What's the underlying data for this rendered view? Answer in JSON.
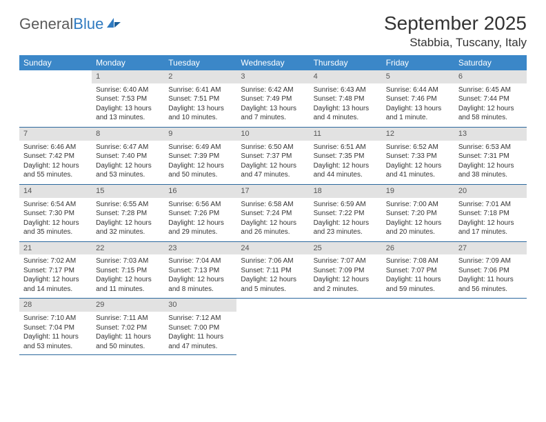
{
  "logo": {
    "text1": "General",
    "text2": "Blue"
  },
  "title": "September 2025",
  "location": "Stabbia, Tuscany, Italy",
  "colors": {
    "header_bg": "#3b87c8",
    "header_text": "#ffffff",
    "daynum_bg": "#e2e2e2",
    "row_border": "#2a679d",
    "body_text": "#333333",
    "logo_gray": "#5a5a5a",
    "logo_blue": "#2f7ac0"
  },
  "day_headers": [
    "Sunday",
    "Monday",
    "Tuesday",
    "Wednesday",
    "Thursday",
    "Friday",
    "Saturday"
  ],
  "weeks": [
    [
      {
        "n": "",
        "sr": "",
        "ss": "",
        "d1": "",
        "d2": ""
      },
      {
        "n": "1",
        "sr": "Sunrise: 6:40 AM",
        "ss": "Sunset: 7:53 PM",
        "d1": "Daylight: 13 hours",
        "d2": "and 13 minutes."
      },
      {
        "n": "2",
        "sr": "Sunrise: 6:41 AM",
        "ss": "Sunset: 7:51 PM",
        "d1": "Daylight: 13 hours",
        "d2": "and 10 minutes."
      },
      {
        "n": "3",
        "sr": "Sunrise: 6:42 AM",
        "ss": "Sunset: 7:49 PM",
        "d1": "Daylight: 13 hours",
        "d2": "and 7 minutes."
      },
      {
        "n": "4",
        "sr": "Sunrise: 6:43 AM",
        "ss": "Sunset: 7:48 PM",
        "d1": "Daylight: 13 hours",
        "d2": "and 4 minutes."
      },
      {
        "n": "5",
        "sr": "Sunrise: 6:44 AM",
        "ss": "Sunset: 7:46 PM",
        "d1": "Daylight: 13 hours",
        "d2": "and 1 minute."
      },
      {
        "n": "6",
        "sr": "Sunrise: 6:45 AM",
        "ss": "Sunset: 7:44 PM",
        "d1": "Daylight: 12 hours",
        "d2": "and 58 minutes."
      }
    ],
    [
      {
        "n": "7",
        "sr": "Sunrise: 6:46 AM",
        "ss": "Sunset: 7:42 PM",
        "d1": "Daylight: 12 hours",
        "d2": "and 55 minutes."
      },
      {
        "n": "8",
        "sr": "Sunrise: 6:47 AM",
        "ss": "Sunset: 7:40 PM",
        "d1": "Daylight: 12 hours",
        "d2": "and 53 minutes."
      },
      {
        "n": "9",
        "sr": "Sunrise: 6:49 AM",
        "ss": "Sunset: 7:39 PM",
        "d1": "Daylight: 12 hours",
        "d2": "and 50 minutes."
      },
      {
        "n": "10",
        "sr": "Sunrise: 6:50 AM",
        "ss": "Sunset: 7:37 PM",
        "d1": "Daylight: 12 hours",
        "d2": "and 47 minutes."
      },
      {
        "n": "11",
        "sr": "Sunrise: 6:51 AM",
        "ss": "Sunset: 7:35 PM",
        "d1": "Daylight: 12 hours",
        "d2": "and 44 minutes."
      },
      {
        "n": "12",
        "sr": "Sunrise: 6:52 AM",
        "ss": "Sunset: 7:33 PM",
        "d1": "Daylight: 12 hours",
        "d2": "and 41 minutes."
      },
      {
        "n": "13",
        "sr": "Sunrise: 6:53 AM",
        "ss": "Sunset: 7:31 PM",
        "d1": "Daylight: 12 hours",
        "d2": "and 38 minutes."
      }
    ],
    [
      {
        "n": "14",
        "sr": "Sunrise: 6:54 AM",
        "ss": "Sunset: 7:30 PM",
        "d1": "Daylight: 12 hours",
        "d2": "and 35 minutes."
      },
      {
        "n": "15",
        "sr": "Sunrise: 6:55 AM",
        "ss": "Sunset: 7:28 PM",
        "d1": "Daylight: 12 hours",
        "d2": "and 32 minutes."
      },
      {
        "n": "16",
        "sr": "Sunrise: 6:56 AM",
        "ss": "Sunset: 7:26 PM",
        "d1": "Daylight: 12 hours",
        "d2": "and 29 minutes."
      },
      {
        "n": "17",
        "sr": "Sunrise: 6:58 AM",
        "ss": "Sunset: 7:24 PM",
        "d1": "Daylight: 12 hours",
        "d2": "and 26 minutes."
      },
      {
        "n": "18",
        "sr": "Sunrise: 6:59 AM",
        "ss": "Sunset: 7:22 PM",
        "d1": "Daylight: 12 hours",
        "d2": "and 23 minutes."
      },
      {
        "n": "19",
        "sr": "Sunrise: 7:00 AM",
        "ss": "Sunset: 7:20 PM",
        "d1": "Daylight: 12 hours",
        "d2": "and 20 minutes."
      },
      {
        "n": "20",
        "sr": "Sunrise: 7:01 AM",
        "ss": "Sunset: 7:18 PM",
        "d1": "Daylight: 12 hours",
        "d2": "and 17 minutes."
      }
    ],
    [
      {
        "n": "21",
        "sr": "Sunrise: 7:02 AM",
        "ss": "Sunset: 7:17 PM",
        "d1": "Daylight: 12 hours",
        "d2": "and 14 minutes."
      },
      {
        "n": "22",
        "sr": "Sunrise: 7:03 AM",
        "ss": "Sunset: 7:15 PM",
        "d1": "Daylight: 12 hours",
        "d2": "and 11 minutes."
      },
      {
        "n": "23",
        "sr": "Sunrise: 7:04 AM",
        "ss": "Sunset: 7:13 PM",
        "d1": "Daylight: 12 hours",
        "d2": "and 8 minutes."
      },
      {
        "n": "24",
        "sr": "Sunrise: 7:06 AM",
        "ss": "Sunset: 7:11 PM",
        "d1": "Daylight: 12 hours",
        "d2": "and 5 minutes."
      },
      {
        "n": "25",
        "sr": "Sunrise: 7:07 AM",
        "ss": "Sunset: 7:09 PM",
        "d1": "Daylight: 12 hours",
        "d2": "and 2 minutes."
      },
      {
        "n": "26",
        "sr": "Sunrise: 7:08 AM",
        "ss": "Sunset: 7:07 PM",
        "d1": "Daylight: 11 hours",
        "d2": "and 59 minutes."
      },
      {
        "n": "27",
        "sr": "Sunrise: 7:09 AM",
        "ss": "Sunset: 7:06 PM",
        "d1": "Daylight: 11 hours",
        "d2": "and 56 minutes."
      }
    ],
    [
      {
        "n": "28",
        "sr": "Sunrise: 7:10 AM",
        "ss": "Sunset: 7:04 PM",
        "d1": "Daylight: 11 hours",
        "d2": "and 53 minutes."
      },
      {
        "n": "29",
        "sr": "Sunrise: 7:11 AM",
        "ss": "Sunset: 7:02 PM",
        "d1": "Daylight: 11 hours",
        "d2": "and 50 minutes."
      },
      {
        "n": "30",
        "sr": "Sunrise: 7:12 AM",
        "ss": "Sunset: 7:00 PM",
        "d1": "Daylight: 11 hours",
        "d2": "and 47 minutes."
      },
      {
        "n": "",
        "sr": "",
        "ss": "",
        "d1": "",
        "d2": ""
      },
      {
        "n": "",
        "sr": "",
        "ss": "",
        "d1": "",
        "d2": ""
      },
      {
        "n": "",
        "sr": "",
        "ss": "",
        "d1": "",
        "d2": ""
      },
      {
        "n": "",
        "sr": "",
        "ss": "",
        "d1": "",
        "d2": ""
      }
    ]
  ]
}
